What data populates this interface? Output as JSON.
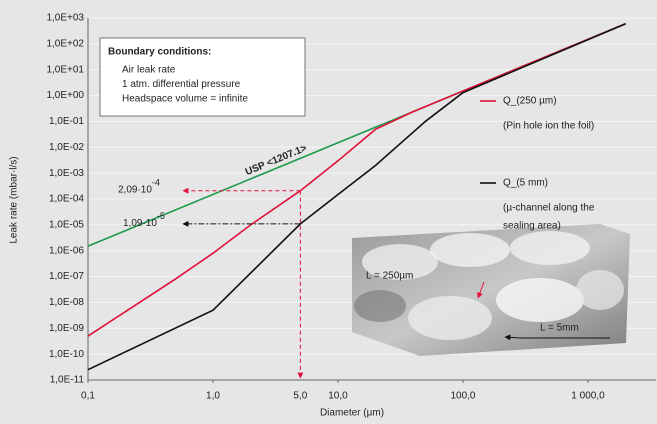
{
  "chart_data": {
    "type": "line",
    "log_x": true,
    "log_y": true,
    "grid": true,
    "x_label": "Diameter (µm)",
    "y_label": "Leak rate (mbar·l/s)",
    "xlim": [
      0.1,
      3500
    ],
    "ylim": [
      1e-11,
      1000
    ],
    "xticks": [
      {
        "value": 0.1,
        "label": "0,1"
      },
      {
        "value": 1,
        "label": "1,0"
      },
      {
        "value": 10,
        "label": "10,0"
      },
      {
        "value": 100,
        "label": "100,0"
      },
      {
        "value": 1000,
        "label": "1 000,0"
      }
    ],
    "highlight_xtick": {
      "value": 5,
      "label": "5,0",
      "color": "#e0103a"
    },
    "yticks": [
      {
        "value": 1000,
        "label": "1,0E+03"
      },
      {
        "value": 100,
        "label": "1,0E+02"
      },
      {
        "value": 10,
        "label": "1,0E+01"
      },
      {
        "value": 1,
        "label": "1,0E+00"
      },
      {
        "value": 0.1,
        "label": "1,0E-01"
      },
      {
        "value": 0.01,
        "label": "1,0E-02"
      },
      {
        "value": 0.001,
        "label": "1,0E-03"
      },
      {
        "value": 0.0001,
        "label": "1,0E-04"
      },
      {
        "value": 1e-05,
        "label": "1,0E-05"
      },
      {
        "value": 1e-06,
        "label": "1,0E-06"
      },
      {
        "value": 1e-07,
        "label": "1,0E-07"
      },
      {
        "value": 1e-08,
        "label": "1,0E-08"
      },
      {
        "value": 1e-09,
        "label": "1,0E-09"
      },
      {
        "value": 1e-10,
        "label": "1,0E-10"
      },
      {
        "value": 1e-11,
        "label": "1,0E-11"
      }
    ],
    "series": [
      {
        "name": "USP <1207.1>",
        "color": "#1a9a4a",
        "label_on_line": true,
        "x": [
          0.1,
          2000
        ],
        "values": [
          1.5e-06,
          600
        ]
      },
      {
        "name": "Q_(250 µm)",
        "color": "#e0103a",
        "notes": [
          "(Pin hole ion the foil)"
        ],
        "x": [
          0.1,
          0.5,
          1,
          2,
          5,
          10,
          20,
          40,
          100,
          2000
        ],
        "values": [
          5e-10,
          8e-08,
          8e-07,
          1e-05,
          0.000209,
          0.003,
          0.05,
          0.24,
          1.5,
          600
        ]
      },
      {
        "name": "Q_(5 mm)",
        "color": "#111111",
        "notes": [
          "(µ-channel along the",
          "sealing area)"
        ],
        "x": [
          0.1,
          1,
          5,
          10,
          20,
          50,
          100,
          2000
        ],
        "values": [
          2.5e-11,
          5e-09,
          1.09e-05,
          0.00015,
          0.002,
          0.1,
          1.3,
          600
        ]
      }
    ],
    "annotations": [
      {
        "x": 5,
        "y": 0.000209,
        "label": "2,09·10",
        "exponent": "-4",
        "color": "#e0103a"
      },
      {
        "x": 5,
        "y": 1.09e-05,
        "label": "1,09·10",
        "exponent": "-5",
        "color": "#111111"
      }
    ],
    "boundary_box": {
      "title": "Boundary conditions:",
      "lines": [
        "Air leak rate",
        "1 atm. differential pressure",
        "Headspace volume = infinite"
      ]
    },
    "photo_labels": [
      "L = 250µm",
      "L = 5mm"
    ]
  }
}
